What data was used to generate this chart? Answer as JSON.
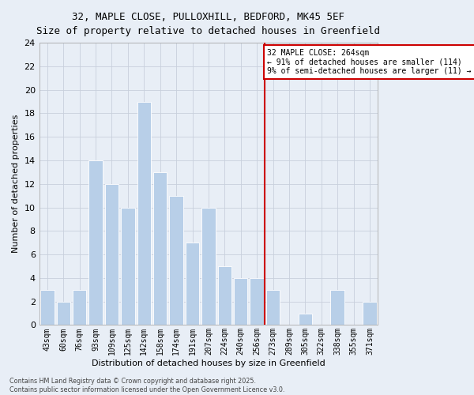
{
  "title_line1": "32, MAPLE CLOSE, PULLOXHILL, BEDFORD, MK45 5EF",
  "title_line2": "Size of property relative to detached houses in Greenfield",
  "xlabel": "Distribution of detached houses by size in Greenfield",
  "ylabel": "Number of detached properties",
  "categories": [
    "43sqm",
    "60sqm",
    "76sqm",
    "93sqm",
    "109sqm",
    "125sqm",
    "142sqm",
    "158sqm",
    "174sqm",
    "191sqm",
    "207sqm",
    "224sqm",
    "240sqm",
    "256sqm",
    "273sqm",
    "289sqm",
    "305sqm",
    "322sqm",
    "338sqm",
    "355sqm",
    "371sqm"
  ],
  "values": [
    3,
    2,
    3,
    14,
    12,
    10,
    19,
    13,
    11,
    7,
    10,
    5,
    4,
    4,
    3,
    0,
    1,
    0,
    3,
    0,
    2
  ],
  "bar_color": "#b8cfe8",
  "bar_edge_color": "#ffffff",
  "grid_color": "#c8d0dc",
  "vline_pos": 13.5,
  "annotation_text": "32 MAPLE CLOSE: 264sqm\n← 91% of detached houses are smaller (114)\n9% of semi-detached houses are larger (11) →",
  "annotation_box_color": "#ffffff",
  "annotation_box_edge_color": "#cc0000",
  "vline_color": "#cc0000",
  "ylim": [
    0,
    24
  ],
  "yticks": [
    0,
    2,
    4,
    6,
    8,
    10,
    12,
    14,
    16,
    18,
    20,
    22,
    24
  ],
  "footer_line1": "Contains HM Land Registry data © Crown copyright and database right 2025.",
  "footer_line2": "Contains public sector information licensed under the Open Government Licence v3.0.",
  "bg_color": "#e8eef6",
  "plot_bg_color": "#e8eef6"
}
